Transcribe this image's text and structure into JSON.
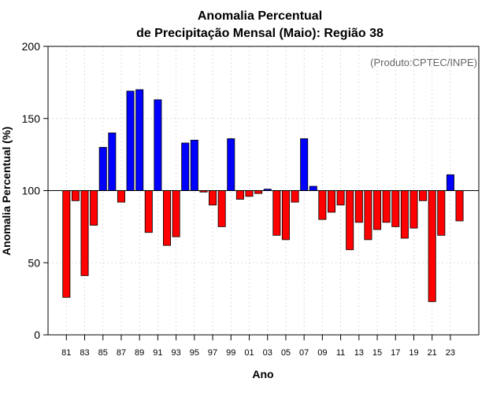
{
  "chart_data": {
    "type": "bar",
    "title_line1": "Anomalia Percentual",
    "title_line2": "de Precipitação Mensal (Maio): Região 38",
    "xlabel": "Ano",
    "ylabel": "Anomalia Percentual (%)",
    "credit": "(Produto:CPTEC/INPE)",
    "baseline": 100,
    "ylim": [
      0,
      200
    ],
    "yticks": [
      "0",
      "50",
      "100",
      "150",
      "200"
    ],
    "tick_labels": [
      "81",
      "83",
      "85",
      "87",
      "89",
      "91",
      "93",
      "95",
      "97",
      "99",
      "01",
      "03",
      "05",
      "07",
      "09",
      "11",
      "13",
      "15",
      "17",
      "19",
      "21",
      "23"
    ],
    "categories": [
      "1981",
      "1982",
      "1983",
      "1984",
      "1985",
      "1986",
      "1987",
      "1988",
      "1989",
      "1990",
      "1991",
      "1992",
      "1993",
      "1994",
      "1995",
      "1996",
      "1997",
      "1998",
      "1999",
      "2000",
      "2001",
      "2002",
      "2003",
      "2004",
      "2005",
      "2006",
      "2007",
      "2008",
      "2009",
      "2010",
      "2011",
      "2012",
      "2013",
      "2014",
      "2015",
      "2016",
      "2017",
      "2018",
      "2019",
      "2020",
      "2021",
      "2022",
      "2023",
      "2024"
    ],
    "values": [
      26,
      93,
      41,
      76,
      130,
      140,
      92,
      169,
      170,
      71,
      163,
      62,
      68,
      133,
      135,
      99,
      90,
      75,
      136,
      94,
      96,
      98,
      101,
      69,
      66,
      92,
      136,
      103,
      80,
      85,
      90,
      59,
      78,
      66,
      73,
      78,
      75,
      67,
      74,
      93,
      23,
      69,
      111,
      79
    ],
    "colors": {
      "above": "#0000ff",
      "below": "#ff0000",
      "outline": "#000000",
      "grid": "#d3d3d3"
    }
  }
}
